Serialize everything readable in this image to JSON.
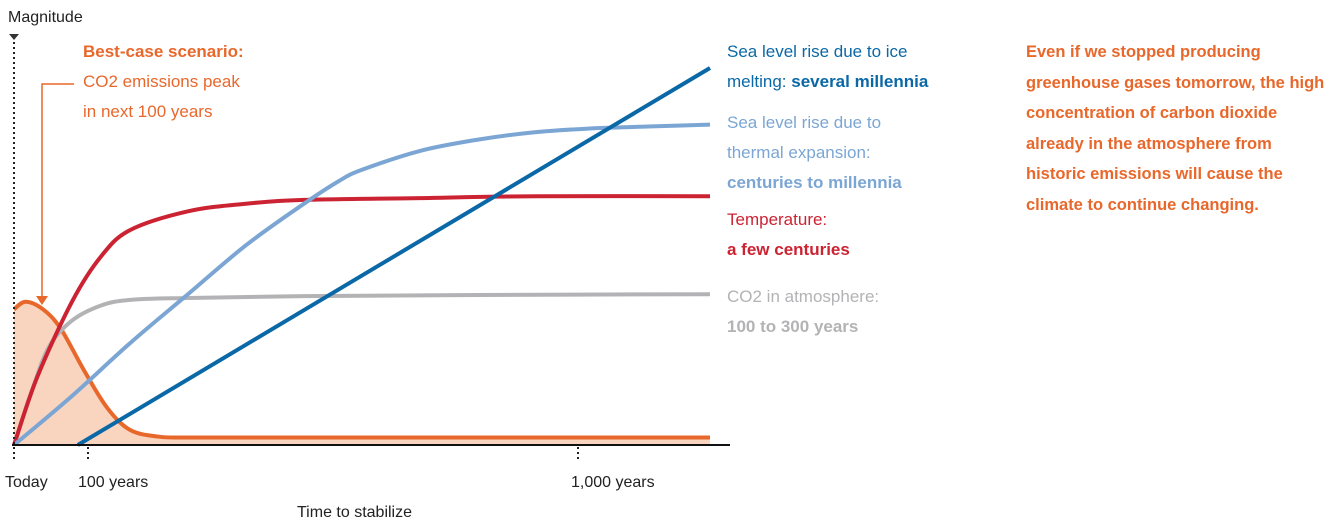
{
  "chart_data": {
    "type": "line",
    "yaxis_label": "Magnitude",
    "xaxis_label": "Time to stabilize",
    "x_ticks": [
      {
        "x": 0,
        "label": "Today"
      },
      {
        "x": 100,
        "label": "100 years"
      },
      {
        "x": 1000,
        "label": "1,000 years"
      }
    ],
    "xlim": [
      0,
      1200
    ],
    "ylim": [
      0,
      1
    ],
    "series": [
      {
        "id": "co2_emissions",
        "color": "#e8682c",
        "fill": "#f9d5c0",
        "label_bold": "Best-case scenario:",
        "label_lines": [
          "CO2 emissions peak",
          "in next 100 years"
        ],
        "x": [
          0,
          20,
          50,
          80,
          120,
          160,
          200,
          250,
          300,
          400,
          500,
          700,
          1000,
          1200
        ],
        "y": [
          0.36,
          0.38,
          0.36,
          0.31,
          0.2,
          0.1,
          0.04,
          0.022,
          0.02,
          0.02,
          0.02,
          0.02,
          0.02,
          0.02
        ]
      },
      {
        "id": "co2_atmosphere",
        "color": "#b3b3b5",
        "label_lines": [
          "CO2 in atmosphere:"
        ],
        "label_bold": "100 to 300 years",
        "x": [
          0,
          30,
          60,
          100,
          150,
          200,
          300,
          500,
          800,
          1200
        ],
        "y": [
          0,
          0.14,
          0.26,
          0.33,
          0.37,
          0.385,
          0.39,
          0.395,
          0.398,
          0.4
        ]
      },
      {
        "id": "temperature",
        "color": "#cc2333",
        "label_lines": [
          "Temperature:"
        ],
        "label_bold": "a few centuries",
        "x": [
          0,
          40,
          100,
          150,
          200,
          300,
          400,
          500,
          700,
          900,
          1200
        ],
        "y": [
          0,
          0.18,
          0.38,
          0.5,
          0.57,
          0.62,
          0.64,
          0.65,
          0.655,
          0.66,
          0.66
        ]
      },
      {
        "id": "thermal_expansion",
        "color": "#7ba6d4",
        "label_lines": [
          "Sea level rise due to",
          "thermal expansion:"
        ],
        "label_bold": "centuries to millennia",
        "x": [
          0,
          100,
          200,
          300,
          400,
          500,
          560,
          600,
          700,
          800,
          900,
          1000,
          1100,
          1200
        ],
        "y": [
          0,
          0.13,
          0.27,
          0.4,
          0.53,
          0.64,
          0.7,
          0.73,
          0.78,
          0.81,
          0.83,
          0.84,
          0.845,
          0.85
        ]
      },
      {
        "id": "ice_melting",
        "color": "#0a68a6",
        "label_lines": [
          "Sea level rise due to ice"
        ],
        "label_prefix": "melting: ",
        "label_bold": "several millennia",
        "x": [
          110,
          1200
        ],
        "y": [
          0,
          1.0
        ]
      }
    ],
    "annotation": "Even if we stopped producing greenhouse gases tomorrow, the high concentration of carbon dioxide already in the atmosphere from historic emissions will cause the climate to continue changing."
  }
}
